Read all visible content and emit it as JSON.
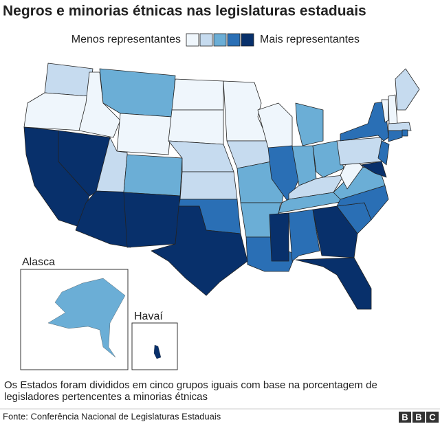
{
  "title": "Negros e minorias étnicas nas legislaturas estaduais",
  "legend": {
    "low_label": "Menos representantes",
    "high_label": "Mais representantes",
    "colors": [
      "#eff6fc",
      "#c6dbef",
      "#6baed6",
      "#2a6fb5",
      "#08306b"
    ]
  },
  "insets": {
    "alaska": "Alasca",
    "hawaii": "Havaí"
  },
  "note": "Os Estados foram divididos em cinco grupos iguais com base na porcentagem de legisladores pertencentes a minorias étnicas",
  "source": "Fonte: Conferência Nacional de Legislaturas Estaduais",
  "logo": [
    "B",
    "B",
    "C"
  ]
}
